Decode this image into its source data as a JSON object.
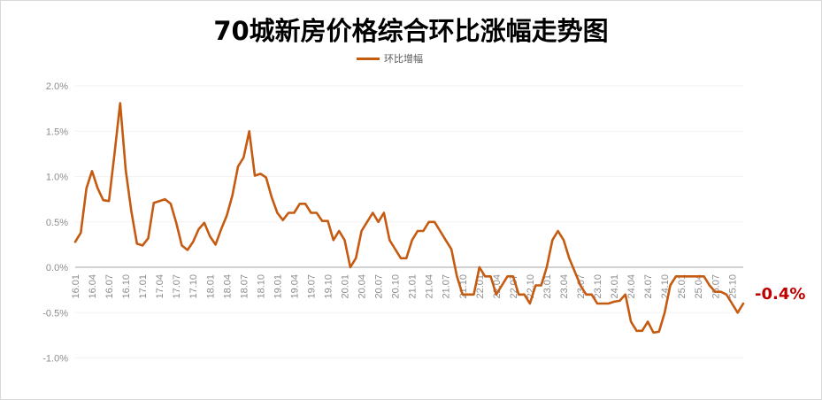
{
  "chart_data": {
    "type": "line",
    "title": "70城新房价格综合环比涨幅走势图",
    "legend": "环比增幅",
    "legend_position": "top-center",
    "ylim": [
      -1.0,
      2.0
    ],
    "yticks": [
      "2.0%",
      "1.5%",
      "1.0%",
      "0.5%",
      "0.0%",
      "-0.5%",
      "-1.0%"
    ],
    "ytick_values": [
      2.0,
      1.5,
      1.0,
      0.5,
      0.0,
      -0.5,
      -1.0
    ],
    "xtick_labels": [
      "16.01",
      "16.04",
      "16.07",
      "16.10",
      "17.01",
      "17.04",
      "17.07",
      "17.10",
      "18.01",
      "18.04",
      "18.07",
      "18.10",
      "19.01",
      "19.04",
      "19.07",
      "19.10",
      "20.01",
      "20.04",
      "20.07",
      "20.10",
      "21.01",
      "21.04",
      "21.07",
      "21.10",
      "22.01",
      "22.04",
      "22.07",
      "22.10",
      "23.01",
      "23.04",
      "23.07",
      "23.10",
      "24.01",
      "24.04",
      "24.07",
      "24.10",
      "25.01",
      "25.04",
      "25.07",
      "25.10"
    ],
    "annotation": "-0.4%",
    "series": [
      {
        "name": "环比增幅",
        "color": "#c55a11",
        "values": [
          0.28,
          0.38,
          0.87,
          1.06,
          0.87,
          0.74,
          0.73,
          1.25,
          1.81,
          1.07,
          0.62,
          0.26,
          0.24,
          0.32,
          0.71,
          0.73,
          0.75,
          0.7,
          0.49,
          0.24,
          0.19,
          0.28,
          0.42,
          0.49,
          0.34,
          0.25,
          0.42,
          0.57,
          0.79,
          1.11,
          1.21,
          1.5,
          1.01,
          1.03,
          0.99,
          0.77,
          0.6,
          0.52,
          0.6,
          0.6,
          0.7,
          0.7,
          0.6,
          0.6,
          0.51,
          0.51,
          0.3,
          0.4,
          0.3,
          0.0,
          0.1,
          0.4,
          0.5,
          0.6,
          0.5,
          0.6,
          0.3,
          0.2,
          0.1,
          0.1,
          0.3,
          0.4,
          0.4,
          0.5,
          0.5,
          0.4,
          0.3,
          0.2,
          -0.1,
          -0.3,
          -0.3,
          -0.3,
          0.0,
          -0.1,
          -0.1,
          -0.3,
          -0.2,
          -0.1,
          -0.1,
          -0.3,
          -0.3,
          -0.4,
          -0.2,
          -0.2,
          0.0,
          0.3,
          0.4,
          0.3,
          0.1,
          -0.05,
          -0.2,
          -0.3,
          -0.3,
          -0.4,
          -0.4,
          -0.4,
          -0.38,
          -0.37,
          -0.3,
          -0.6,
          -0.7,
          -0.7,
          -0.6,
          -0.72,
          -0.71,
          -0.5,
          -0.2,
          -0.1,
          -0.1,
          -0.1,
          -0.1,
          -0.1,
          -0.1,
          -0.2,
          -0.27,
          -0.27,
          -0.3,
          -0.4,
          -0.5,
          -0.4
        ]
      }
    ]
  }
}
